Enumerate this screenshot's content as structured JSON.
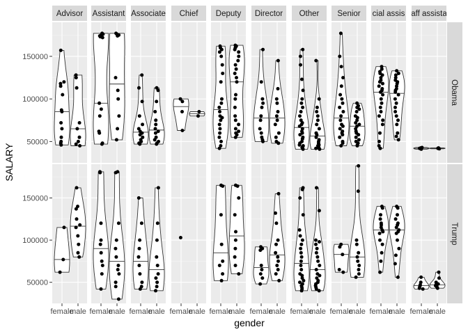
{
  "chart_data": {
    "type": "violin",
    "xlabel": "gender",
    "ylabel": "SALARY",
    "x_categories": [
      "female",
      "male"
    ],
    "y_ticks": [
      50000,
      100000,
      150000
    ],
    "y_tick_labels": [
      "50000",
      "100000",
      "150000"
    ],
    "ylim": [
      25000,
      190000
    ],
    "column_facets": [
      "Advisor",
      "Assistant",
      "Associate",
      "Chief",
      "Deputy",
      "Director",
      "Other",
      "Senior",
      "Special assistant",
      "Staff assistant"
    ],
    "column_facet_labels": [
      "Advisor",
      "Assistant",
      "Associate",
      "Chief",
      "Deputy",
      "Director",
      "Other",
      "Senior",
      "cial assis",
      "aff assista"
    ],
    "row_facets": [
      "Obama",
      "Trump"
    ],
    "colors": {
      "panel_bg": "#ebebeb",
      "grid_major": "#ffffff",
      "strip_bg": "#d9d9d9",
      "point": "#000000",
      "violin_fill": "#ffffff",
      "violin_stroke": "#333333"
    },
    "panels": {
      "Obama": {
        "Advisor": {
          "female": [
            157000,
            120000,
            118000,
            115000,
            105000,
            87000,
            85000,
            72000,
            65000,
            55000,
            50000,
            48000,
            46000
          ],
          "male": [
            128000,
            125000,
            113000,
            72000,
            65000,
            55000,
            50000,
            47000,
            45000
          ]
        },
        "Assistant": {
          "female": [
            177000,
            176000,
            175000,
            174000,
            173000,
            172000,
            95000,
            88000,
            80000,
            62000,
            60000,
            48000,
            47000
          ],
          "male": [
            177000,
            176000,
            175000,
            174000,
            125000,
            110000,
            100000,
            80000,
            65000,
            52000
          ]
        },
        "Associate": {
          "female": [
            128000,
            113000,
            97000,
            80000,
            70000,
            65000,
            62000,
            60000,
            58000,
            55000,
            52000,
            50000,
            48000,
            47000
          ],
          "male": [
            113000,
            110000,
            97000,
            85000,
            75000,
            70000,
            65000,
            62000,
            60000,
            55000,
            52000,
            50000,
            48000,
            47000
          ]
        },
        "Chief": {
          "female": [
            100000,
            97000,
            85000,
            63000
          ],
          "male": [
            85000,
            80000
          ]
        },
        "Deputy": {
          "female": [
            162000,
            160000,
            158000,
            155000,
            150000,
            140000,
            130000,
            120000,
            100000,
            95000,
            90000,
            85000,
            80000,
            78000,
            75000,
            70000,
            65000,
            60000,
            55000,
            50000,
            45000,
            42000
          ],
          "male": [
            163000,
            162000,
            160000,
            158000,
            155000,
            150000,
            145000,
            140000,
            135000,
            130000,
            125000,
            120000,
            105000,
            100000,
            90000,
            80000,
            75000,
            70000,
            65000,
            62000,
            60000,
            58000,
            55000
          ]
        },
        "Director": {
          "female": [
            158000,
            120000,
            100000,
            95000,
            90000,
            80000,
            75000,
            65000,
            60000,
            55000,
            52000,
            50000
          ],
          "male": [
            145000,
            112000,
            100000,
            95000,
            85000,
            80000,
            75000,
            70000,
            60000,
            55000,
            50000,
            48000
          ]
        },
        "Other": {
          "female": [
            158000,
            150000,
            140000,
            123000,
            110000,
            100000,
            95000,
            90000,
            85000,
            80000,
            75000,
            72000,
            70000,
            68000,
            65000,
            62000,
            60000,
            58000,
            55000,
            53000,
            50000,
            48000,
            46000,
            45000,
            44000,
            43000,
            42000,
            41000
          ],
          "male": [
            145000,
            100000,
            90000,
            85000,
            80000,
            75000,
            70000,
            65000,
            60000,
            58000,
            55000,
            52000,
            50000,
            48000,
            46000,
            45000,
            44000,
            43000,
            42000,
            41000
          ]
        },
        "Senior": {
          "female": [
            177000,
            150000,
            138000,
            125000,
            115000,
            105000,
            100000,
            95000,
            90000,
            85000,
            80000,
            75000,
            70000,
            68000,
            65000,
            62000,
            60000,
            58000,
            55000,
            50000,
            48000,
            45000
          ],
          "male": [
            95000,
            92000,
            90000,
            88000,
            85000,
            80000,
            78000,
            75000,
            72000,
            70000,
            68000,
            65000,
            62000,
            60000,
            58000,
            55000,
            52000,
            50000,
            48000,
            46000,
            45000
          ]
        },
        "Special assistant": {
          "female": [
            138000,
            135000,
            132000,
            130000,
            128000,
            125000,
            122000,
            120000,
            118000,
            115000,
            112000,
            110000,
            108000,
            105000,
            100000,
            95000,
            90000,
            85000,
            80000,
            75000,
            70000,
            60000,
            50000,
            45000,
            42000
          ],
          "male": [
            133000,
            130000,
            128000,
            125000,
            122000,
            120000,
            118000,
            115000,
            112000,
            110000,
            108000,
            105000,
            100000,
            95000,
            90000,
            85000,
            80000,
            75000,
            70000,
            60000,
            56000,
            52000
          ]
        },
        "Staff assistant": {
          "female": [
            43000,
            42500,
            42000,
            41500,
            41000
          ],
          "male": [
            42500,
            42000,
            41500
          ]
        }
      },
      "Trump": {
        "Advisor": {
          "female": [
            115000,
            77000,
            62000
          ],
          "male": [
            162000,
            140000,
            137000,
            125000,
            118000,
            115000,
            105000,
            95000,
            85000,
            80000
          ]
        },
        "Assistant": {
          "female": [
            181000,
            180000,
            120000,
            100000,
            95000,
            85000,
            75000,
            70000,
            60000,
            42000
          ],
          "male": [
            181000,
            180000,
            120000,
            100000,
            90000,
            80000,
            70000,
            65000,
            60000,
            50000,
            45000,
            30000
          ]
        },
        "Associate": {
          "female": [
            150000,
            120000,
            100000,
            90000,
            80000,
            70000,
            60000,
            50000,
            45000,
            42000
          ],
          "male": [
            162000,
            120000,
            100000,
            80000,
            70000,
            60000,
            55000,
            50000,
            45000,
            40000
          ]
        },
        "Chief": {
          "female": [
            103000
          ],
          "male": []
        },
        "Deputy": {
          "female": [
            165000,
            164000,
            130000,
            95000,
            75000,
            70000,
            60000,
            52000
          ],
          "male": [
            165000,
            164000,
            150000,
            130000,
            110000,
            100000,
            90000,
            80000,
            70000,
            60000
          ]
        },
        "Director": {
          "female": [
            92000,
            90000,
            88000,
            70000,
            65000,
            60000,
            55000,
            48000
          ],
          "male": [
            155000,
            132000,
            120000,
            100000,
            95000,
            85000,
            80000,
            75000,
            70000,
            65000,
            60000,
            52000
          ]
        },
        "Other": {
          "female": [
            162000,
            160000,
            150000,
            130000,
            112000,
            105000,
            100000,
            95000,
            90000,
            85000,
            80000,
            75000,
            70000,
            65000,
            60000,
            58000,
            55000,
            52000,
            50000,
            48000,
            46000,
            44000,
            42000,
            40000
          ],
          "male": [
            162000,
            135000,
            100000,
            98000,
            95000,
            90000,
            85000,
            80000,
            75000,
            70000,
            65000,
            60000,
            58000,
            55000,
            52000,
            50000,
            48000,
            46000,
            44000,
            42000,
            40000
          ]
        },
        "Senior": {
          "female": [
            95000,
            92000,
            83000,
            65000,
            62000
          ],
          "male": [
            188000,
            158000,
            100000,
            95000,
            85000,
            80000,
            75000,
            70000,
            65000,
            60000,
            56000
          ]
        },
        "Special assistant": {
          "female": [
            140000,
            138000,
            130000,
            125000,
            120000,
            118000,
            115000,
            112000,
            110000,
            108000,
            100000,
            95000,
            85000,
            75000,
            62000
          ],
          "male": [
            140000,
            138000,
            130000,
            125000,
            120000,
            118000,
            115000,
            112000,
            110000,
            108000,
            100000,
            90000,
            82000,
            72000,
            56000
          ]
        },
        "Staff assistant": {
          "female": [
            56000,
            50000,
            47000,
            45000,
            43000,
            42000
          ],
          "male": [
            62000,
            55000,
            50000,
            48000,
            47000,
            46000,
            45000,
            44000,
            43000
          ]
        }
      }
    }
  }
}
